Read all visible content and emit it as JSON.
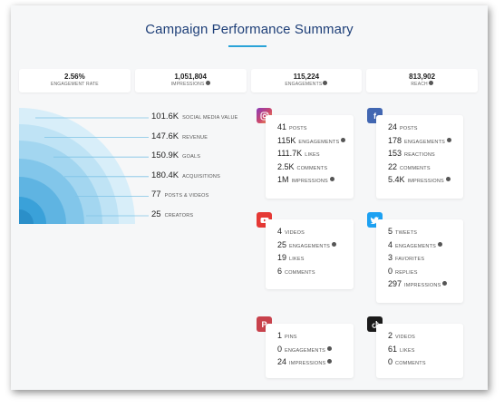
{
  "title": "Campaign Performance Summary",
  "stats": [
    {
      "value": "2.56%",
      "label": "ENGAGEMENT RATE",
      "info": false
    },
    {
      "value": "1,051,804",
      "label": "IMPRESSIONS",
      "info": true
    },
    {
      "value": "115,224",
      "label": "ENGAGEMENTS",
      "info": true
    },
    {
      "value": "813,902",
      "label": "REACH",
      "info": true
    }
  ],
  "summary": [
    {
      "value": "101.6K",
      "label": "SOCIAL MEDIA VALUE"
    },
    {
      "value": "147.6K",
      "label": "REVENUE"
    },
    {
      "value": "150.9K",
      "label": "GOALS"
    },
    {
      "value": "180.4K",
      "label": "ACQUISITIONS"
    },
    {
      "value": "77",
      "label": "POSTS & VIDEOS"
    },
    {
      "value": "25",
      "label": "CREATORS"
    }
  ],
  "ring_colors": [
    "#d8eef9",
    "#bfe3f5",
    "#a3d6f0",
    "#82c6ea",
    "#5fb4e2",
    "#3aa1d9"
  ],
  "platforms": {
    "instagram": {
      "icon": "instagram-icon",
      "color": "#cd486b",
      "metrics": [
        {
          "value": "41",
          "label": "POSTS",
          "info": false
        },
        {
          "value": "115K",
          "label": "ENGAGEMENTS",
          "info": true
        },
        {
          "value": "111.7K",
          "label": "LIKES",
          "info": false
        },
        {
          "value": "2.5K",
          "label": "COMMENTS",
          "info": false
        },
        {
          "value": "1M",
          "label": "IMPRESSIONS",
          "info": true
        }
      ]
    },
    "facebook": {
      "icon": "facebook-icon",
      "color": "#4267b2",
      "metrics": [
        {
          "value": "24",
          "label": "POSTS",
          "info": false
        },
        {
          "value": "178",
          "label": "ENGAGEMENTS",
          "info": true
        },
        {
          "value": "153",
          "label": "REACTIONS",
          "info": false
        },
        {
          "value": "22",
          "label": "COMMENTS",
          "info": false
        },
        {
          "value": "5.4K",
          "label": "IMPRESSIONS",
          "info": true
        }
      ]
    },
    "youtube": {
      "icon": "youtube-icon",
      "color": "#e53935",
      "metrics": [
        {
          "value": "4",
          "label": "VIDEOS",
          "info": false
        },
        {
          "value": "25",
          "label": "ENGAGEMENTS",
          "info": true
        },
        {
          "value": "19",
          "label": "LIKES",
          "info": false
        },
        {
          "value": "6",
          "label": "COMMENTS",
          "info": false
        }
      ]
    },
    "twitter": {
      "icon": "twitter-icon",
      "color": "#1da1f2",
      "metrics": [
        {
          "value": "5",
          "label": "TWEETS",
          "info": false
        },
        {
          "value": "4",
          "label": "ENGAGEMENTS",
          "info": true
        },
        {
          "value": "3",
          "label": "FAVORITES",
          "info": false
        },
        {
          "value": "0",
          "label": "REPLIES",
          "info": false
        },
        {
          "value": "297",
          "label": "IMPRESSIONS",
          "info": true
        }
      ]
    },
    "pinterest": {
      "icon": "pinterest-icon",
      "color": "#c8424c",
      "metrics": [
        {
          "value": "1",
          "label": "PINS",
          "info": false
        },
        {
          "value": "0",
          "label": "ENGAGEMENTS",
          "info": true
        },
        {
          "value": "24",
          "label": "IMPRESSIONS",
          "info": true
        }
      ]
    },
    "tiktok": {
      "icon": "tiktok-icon",
      "color": "#1b1b1b",
      "metrics": [
        {
          "value": "2",
          "label": "VIDEOS",
          "info": false
        },
        {
          "value": "61",
          "label": "LIKES",
          "info": false
        },
        {
          "value": "0",
          "label": "COMMENTS",
          "info": false
        }
      ]
    }
  }
}
